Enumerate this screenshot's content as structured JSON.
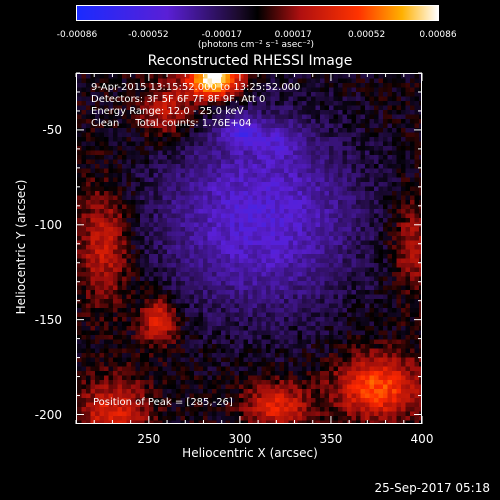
{
  "chart_data": {
    "type": "heatmap",
    "title": "Reconstructed RHESSI Image",
    "xlabel": "Heliocentric X (arcsec)",
    "ylabel": "Heliocentric Y (arcsec)",
    "xlim": [
      210,
      400
    ],
    "ylim": [
      -205,
      -20
    ],
    "x_ticks": [
      "250",
      "300",
      "350",
      "400"
    ],
    "x_tick_values": [
      250,
      300,
      350,
      400
    ],
    "y_ticks": [
      "-50",
      "-100",
      "-150",
      "-200"
    ],
    "y_tick_values": [
      -50,
      -100,
      -150,
      -200
    ],
    "colorbar": {
      "ticks": [
        "-0.00086",
        "-0.00052",
        "-0.00017",
        "0.00017",
        "0.00052",
        "0.00086"
      ],
      "tick_values": [
        -0.00086,
        -0.00052,
        -0.00017,
        0.00017,
        0.00052,
        0.00086
      ],
      "range": [
        -0.00086,
        0.00086
      ],
      "unit": "(photons cm⁻² s⁻¹ asec⁻²)"
    },
    "annotations": {
      "time": "9-Apr-2015 13:15:52.000 to 13:25:52.000",
      "detectors": "Detectors: 3F 5F 6F 7F 8F 9F, Att 0",
      "energy": "Energy Range: 12.0 - 25.0 keV",
      "clean": "Clean     Total counts: 1.76E+04",
      "peak": "Position of Peak = [285,-26]"
    },
    "peak": [
      285,
      -26
    ],
    "sources": [
      {
        "x": 285,
        "y": -26,
        "value": 0.00086
      },
      {
        "x": 300,
        "y": -50,
        "value": -0.00086
      },
      {
        "x": 375,
        "y": -185,
        "value": 0.0005
      },
      {
        "x": 250,
        "y": -150,
        "value": 0.0004
      }
    ]
  },
  "footer": {
    "timestamp": "25-Sep-2017 05:18"
  },
  "colors": {
    "background": "#000000",
    "axis": "#ffffff"
  }
}
